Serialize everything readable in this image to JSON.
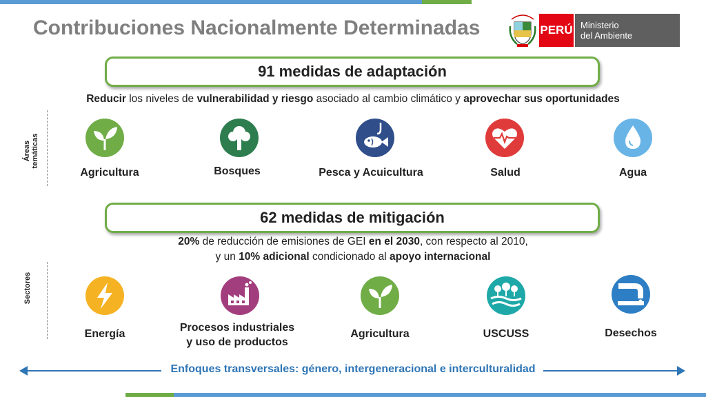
{
  "header": {
    "title": "Contribuciones Nacionalmente Determinadas",
    "logo": {
      "peru": "PERÚ",
      "ministry_line1": "Ministerio",
      "ministry_line2": "del Ambiente",
      "seal_text": "REPÚBLICA DEL PERÚ"
    }
  },
  "adaptation": {
    "heading": "91 medidas de adaptación",
    "subtitle": {
      "p1": "Reducir",
      "p2": " los niveles de ",
      "p3": "vulnerabilidad y riesgo",
      "p4": " asociado al cambio climático y ",
      "p5": "aprovechar sus oportunidades"
    },
    "side_label_line1": "Áreas",
    "side_label_line2": "temáticas",
    "items": [
      {
        "label": "Agricultura",
        "icon": "sprout-icon",
        "color": "#70ad47"
      },
      {
        "label": "Bosques",
        "icon": "tree-icon",
        "color": "#2e7d4f"
      },
      {
        "label": "Pesca y Acuicultura",
        "icon": "fish-hook-icon",
        "color": "#2f4e8a"
      },
      {
        "label": "Salud",
        "icon": "heart-pulse-icon",
        "color": "#e03b3b"
      },
      {
        "label": "Agua",
        "icon": "water-drop-icon",
        "color": "#69b4e6"
      }
    ]
  },
  "mitigation": {
    "heading": "62 medidas de mitigación",
    "subtitle_line1": {
      "p1": "20%",
      "p2": " de reducción de emisiones de GEI ",
      "p3": "en el 2030",
      "p4": ", con respecto al 2010,"
    },
    "subtitle_line2": {
      "p1": "y un ",
      "p2": "10% adicional",
      "p3": " condicionado al ",
      "p4": "apoyo internacional"
    },
    "side_label": "Sectores",
    "items": [
      {
        "label": "Energía",
        "icon": "lightning-icon",
        "color": "#f5b324"
      },
      {
        "label_line1": "Procesos industriales",
        "label_line2": "y uso de productos",
        "icon": "factory-icon",
        "color": "#a23e7e"
      },
      {
        "label": "Agricultura",
        "icon": "sprout-icon",
        "color": "#70ad47"
      },
      {
        "label": "USCUSS",
        "icon": "landscape-icon",
        "color": "#1fa8a8"
      },
      {
        "label": "Desechos",
        "icon": "waste-pipe-icon",
        "color": "#2d7ec4"
      }
    ]
  },
  "footer": {
    "enfoques": "Enfoques transversales: género, intergeneracional e interculturalidad"
  },
  "colors": {
    "accent_green": "#70ad47",
    "accent_blue": "#5b9bd5",
    "enfoques_blue": "#2e75b6",
    "title_gray": "#7f7f7f",
    "peru_red": "#e30613"
  }
}
